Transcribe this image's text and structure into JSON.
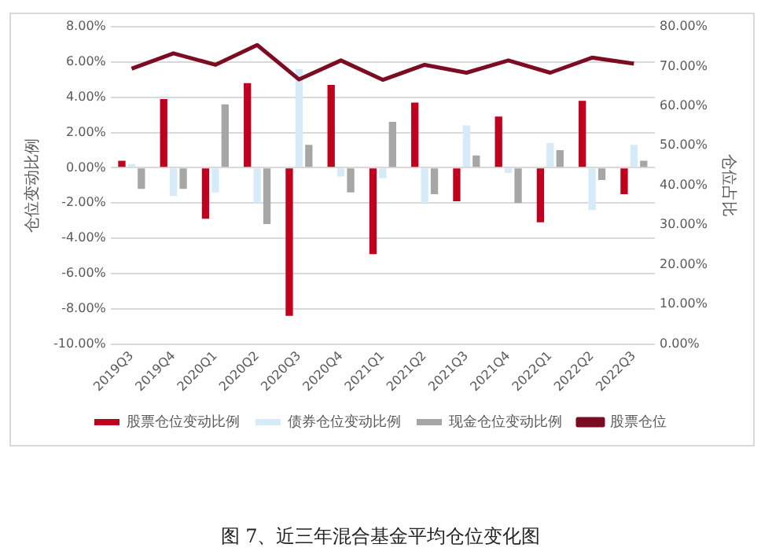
{
  "chart_data": {
    "type": "bar",
    "title": "图 7、近三年混合基金平均仓位变化图",
    "ylabel": "仓位变动比例",
    "y2label": "仓位占比",
    "categories": [
      "2019Q3",
      "2019Q4",
      "2020Q1",
      "2020Q2",
      "2020Q3",
      "2020Q4",
      "2021Q1",
      "2021Q2",
      "2021Q3",
      "2021Q4",
      "2022Q1",
      "2022Q2",
      "2022Q3"
    ],
    "series": [
      {
        "name": "股票仓位变动比例",
        "color": "#c0001f",
        "values": [
          0.4,
          3.9,
          -2.9,
          4.8,
          -8.4,
          4.7,
          -4.9,
          3.7,
          -1.9,
          2.9,
          -3.1,
          3.8,
          -1.5
        ]
      },
      {
        "name": "债券仓位变动比例",
        "color": "#d5ebf8",
        "values": [
          0.2,
          -1.6,
          -1.4,
          -2.0,
          5.6,
          -0.5,
          -0.6,
          -2.0,
          2.4,
          -0.3,
          1.4,
          -2.4,
          1.3
        ]
      },
      {
        "name": "现金仓位变动比例",
        "color": "#a6a6a6",
        "values": [
          -1.2,
          -1.2,
          3.6,
          -3.2,
          1.3,
          -1.4,
          2.6,
          -1.5,
          0.7,
          -2.0,
          1.0,
          -0.7,
          0.4
        ]
      },
      {
        "name": "股票仓位",
        "type": "line",
        "axis": "y2",
        "color": "#7b0c22",
        "values": [
          69.4,
          73.3,
          70.4,
          75.4,
          66.7,
          71.5,
          66.6,
          70.4,
          68.4,
          71.5,
          68.4,
          72.2,
          70.7
        ]
      }
    ],
    "ylim": [
      -10,
      8
    ],
    "yticks": [
      {
        "value": -10,
        "label": "-10.00%"
      },
      {
        "value": -8,
        "label": "-8.00%"
      },
      {
        "value": -6,
        "label": "-6.00%"
      },
      {
        "value": -4,
        "label": "-4.00%"
      },
      {
        "value": -2,
        "label": "-2.00%"
      },
      {
        "value": 0,
        "label": "0.00%"
      },
      {
        "value": 2,
        "label": "2.00%"
      },
      {
        "value": 4,
        "label": "4.00%"
      },
      {
        "value": 6,
        "label": "6.00%"
      },
      {
        "value": 8,
        "label": "8.00%"
      }
    ],
    "y2lim": [
      0,
      80
    ],
    "y2ticks": [
      {
        "value": 0,
        "label": "0.00%"
      },
      {
        "value": 10,
        "label": "10.00%"
      },
      {
        "value": 20,
        "label": "20.00%"
      },
      {
        "value": 30,
        "label": "30.00%"
      },
      {
        "value": 40,
        "label": "40.00%"
      },
      {
        "value": 50,
        "label": "50.00%"
      },
      {
        "value": 60,
        "label": "60.00%"
      },
      {
        "value": 70,
        "label": "70.00%"
      },
      {
        "value": 80,
        "label": "80.00%"
      }
    ],
    "grid": "y",
    "legend": "bottom",
    "marker": "none"
  }
}
